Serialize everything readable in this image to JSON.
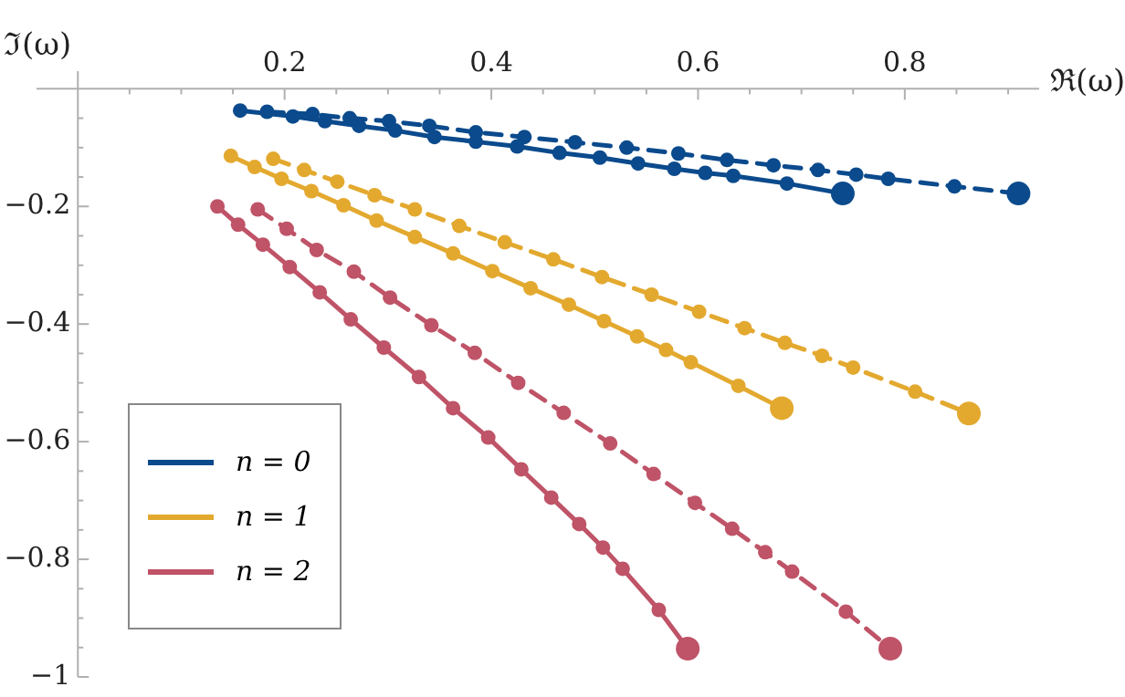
{
  "chart_data": {
    "type": "line",
    "xlabel": "ℜ(ω)",
    "ylabel": "ℑ(ω)",
    "xlim": [
      -0.04,
      0.93
    ],
    "ylim": [
      -1,
      0.03
    ],
    "xticks": [
      {
        "value": 0.05,
        "label": null
      },
      {
        "value": 0.1,
        "label": null
      },
      {
        "value": 0.15,
        "label": null
      },
      {
        "value": 0.2,
        "label": "0.2"
      },
      {
        "value": 0.25,
        "label": null
      },
      {
        "value": 0.3,
        "label": null
      },
      {
        "value": 0.35,
        "label": null
      },
      {
        "value": 0.4,
        "label": "0.4"
      },
      {
        "value": 0.45,
        "label": null
      },
      {
        "value": 0.5,
        "label": null
      },
      {
        "value": 0.55,
        "label": null
      },
      {
        "value": 0.6,
        "label": "0.6"
      },
      {
        "value": 0.65,
        "label": null
      },
      {
        "value": 0.7,
        "label": null
      },
      {
        "value": 0.75,
        "label": null
      },
      {
        "value": 0.8,
        "label": "0.8"
      },
      {
        "value": 0.85,
        "label": null
      },
      {
        "value": 0.9,
        "label": null
      }
    ],
    "yticks": [
      {
        "value": -0.05,
        "label": null
      },
      {
        "value": -0.1,
        "label": null
      },
      {
        "value": -0.15,
        "label": null
      },
      {
        "value": -0.2,
        "label": "−0.2"
      },
      {
        "value": -0.25,
        "label": null
      },
      {
        "value": -0.3,
        "label": null
      },
      {
        "value": -0.35,
        "label": null
      },
      {
        "value": -0.4,
        "label": "−0.4"
      },
      {
        "value": -0.45,
        "label": null
      },
      {
        "value": -0.5,
        "label": null
      },
      {
        "value": -0.55,
        "label": null
      },
      {
        "value": -0.6,
        "label": "−0.6"
      },
      {
        "value": -0.65,
        "label": null
      },
      {
        "value": -0.7,
        "label": null
      },
      {
        "value": -0.75,
        "label": null
      },
      {
        "value": -0.8,
        "label": "−0.8"
      },
      {
        "value": -0.85,
        "label": null
      },
      {
        "value": -0.9,
        "label": null
      },
      {
        "value": -0.95,
        "label": null
      },
      {
        "value": -1,
        "label": "−1"
      }
    ],
    "legend": "bottom left",
    "marker": "circle",
    "series": [
      {
        "name": "n = 0",
        "color": "#0b4a8c",
        "line_style": "solid",
        "x": [
          0.157,
          0.208,
          0.239,
          0.272,
          0.307,
          0.345,
          0.385,
          0.425,
          0.466,
          0.505,
          0.542,
          0.577,
          0.607,
          0.634,
          0.686,
          0.74
        ],
        "values": [
          -0.037,
          -0.047,
          -0.055,
          -0.063,
          -0.071,
          -0.082,
          -0.09,
          -0.098,
          -0.109,
          -0.117,
          -0.127,
          -0.136,
          -0.143,
          -0.148,
          -0.161,
          -0.178
        ]
      },
      {
        "color": "#0b4a8c",
        "line_style": "dashed",
        "x": [
          0.183,
          0.227,
          0.263,
          0.301,
          0.34,
          0.385,
          0.432,
          0.481,
          0.531,
          0.581,
          0.628,
          0.673,
          0.716,
          0.753,
          0.784,
          0.848,
          0.91
        ],
        "values": [
          -0.039,
          -0.043,
          -0.05,
          -0.055,
          -0.063,
          -0.074,
          -0.082,
          -0.091,
          -0.1,
          -0.11,
          -0.121,
          -0.13,
          -0.138,
          -0.146,
          -0.153,
          -0.166,
          -0.178
        ]
      },
      {
        "name": "n = 1",
        "color": "#e3a92f",
        "line_style": "solid",
        "x": [
          0.148,
          0.171,
          0.197,
          0.226,
          0.257,
          0.289,
          0.326,
          0.363,
          0.401,
          0.438,
          0.475,
          0.509,
          0.541,
          0.569,
          0.593,
          0.639,
          0.681
        ],
        "values": [
          -0.114,
          -0.133,
          -0.153,
          -0.174,
          -0.198,
          -0.224,
          -0.252,
          -0.28,
          -0.31,
          -0.339,
          -0.367,
          -0.395,
          -0.421,
          -0.444,
          -0.465,
          -0.505,
          -0.543
        ]
      },
      {
        "color": "#e3a92f",
        "line_style": "dashed",
        "x": [
          0.189,
          0.219,
          0.251,
          0.287,
          0.326,
          0.369,
          0.413,
          0.46,
          0.507,
          0.555,
          0.601,
          0.645,
          0.684,
          0.72,
          0.75,
          0.81,
          0.862
        ],
        "values": [
          -0.119,
          -0.138,
          -0.158,
          -0.181,
          -0.205,
          -0.233,
          -0.261,
          -0.29,
          -0.32,
          -0.35,
          -0.379,
          -0.407,
          -0.432,
          -0.454,
          -0.474,
          -0.515,
          -0.552
        ]
      },
      {
        "name": "n = 2",
        "color": "#bf5367",
        "line_style": "solid",
        "x": [
          0.135,
          0.155,
          0.179,
          0.205,
          0.234,
          0.264,
          0.296,
          0.33,
          0.363,
          0.397,
          0.429,
          0.458,
          0.485,
          0.508,
          0.527,
          0.562,
          0.59
        ],
        "values": [
          -0.2,
          -0.231,
          -0.265,
          -0.303,
          -0.346,
          -0.392,
          -0.44,
          -0.49,
          -0.543,
          -0.593,
          -0.647,
          -0.695,
          -0.74,
          -0.78,
          -0.816,
          -0.886,
          -0.952
        ]
      },
      {
        "color": "#bf5367",
        "line_style": "dashed",
        "x": [
          0.174,
          0.202,
          0.231,
          0.267,
          0.302,
          0.342,
          0.384,
          0.426,
          0.47,
          0.515,
          0.557,
          0.597,
          0.633,
          0.665,
          0.691,
          0.743,
          0.786
        ],
        "values": [
          -0.205,
          -0.238,
          -0.274,
          -0.311,
          -0.355,
          -0.402,
          -0.449,
          -0.5,
          -0.551,
          -0.603,
          -0.655,
          -0.704,
          -0.748,
          -0.788,
          -0.821,
          -0.889,
          -0.952
        ]
      }
    ]
  }
}
